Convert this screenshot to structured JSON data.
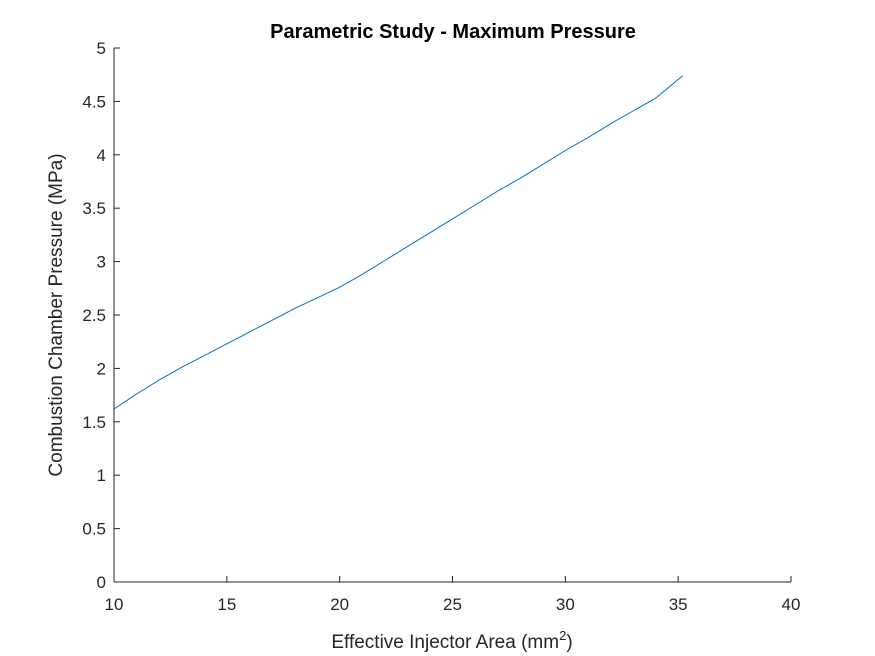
{
  "chart_data": {
    "type": "line",
    "title": "Parametric Study - Maximum Pressure",
    "xlabel": "Effective Injector Area (mm",
    "xlabel_sup": "2",
    "xlabel_end": ")",
    "ylabel": "Combustion Chamber Pressure (MPa)",
    "xlim": [
      10,
      40
    ],
    "ylim": [
      0,
      5
    ],
    "xticks": [
      10,
      15,
      20,
      25,
      30,
      35,
      40
    ],
    "yticks": [
      0,
      0.5,
      1,
      1.5,
      2,
      2.5,
      3,
      3.5,
      4,
      4.5,
      5
    ],
    "xtick_labels": [
      "10",
      "15",
      "20",
      "25",
      "30",
      "35",
      "40"
    ],
    "ytick_labels": [
      "0",
      "0.5",
      "1",
      "1.5",
      "2",
      "2.5",
      "3",
      "3.5",
      "4",
      "4.5",
      "5"
    ],
    "grid": false,
    "line_color": "#0072BD",
    "series": [
      {
        "x": [
          10.0,
          11.0,
          12.0,
          13.0,
          14.0,
          15.0,
          16.0,
          17.0,
          18.0,
          19.0,
          19.5,
          20.0,
          21.0,
          22.0,
          23.0,
          24.0,
          25.0,
          26.0,
          27.0,
          28.0,
          29.0,
          30.0,
          31.0,
          32.0,
          33.0,
          34.0,
          35.2
        ],
        "y": [
          1.62,
          1.76,
          1.89,
          2.01,
          2.12,
          2.23,
          2.34,
          2.45,
          2.56,
          2.66,
          2.71,
          2.76,
          2.88,
          3.01,
          3.14,
          3.27,
          3.4,
          3.53,
          3.66,
          3.78,
          3.91,
          4.04,
          4.16,
          4.29,
          4.41,
          4.53,
          4.74
        ]
      }
    ]
  }
}
